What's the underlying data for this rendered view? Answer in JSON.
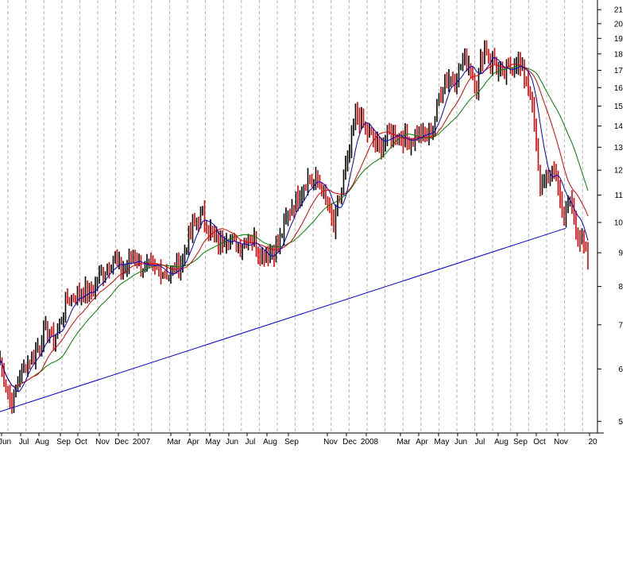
{
  "chart_data": {
    "type": "candlestick",
    "title": "",
    "xlabel": "",
    "ylabel": "",
    "y_scale": "log",
    "ylim": [
      4.8,
      21.6
    ],
    "y_ticks": [
      5,
      6,
      7,
      8,
      9,
      10,
      11,
      12,
      13,
      14,
      15,
      16,
      17,
      18,
      19,
      20,
      21
    ],
    "x_axis_labels": [
      "Jun",
      "Jul",
      "Aug",
      "Sep",
      "Oct",
      "Nov",
      "Dec",
      "2007",
      "Mar",
      "Apr",
      "May",
      "Jun",
      "Jul",
      "Aug",
      "Sep",
      "Nov",
      "Dec",
      "2008",
      "Mar",
      "Apr",
      "May",
      "Jun",
      "Jul",
      "Aug",
      "Sep",
      "Oct",
      "Nov",
      "20"
    ],
    "grid": "vertical dashed",
    "colors": {
      "bull_bar": "#000000",
      "bear_bar": "#e00000",
      "ma_short": "#0000cc",
      "ma_mid": "#e00000",
      "ma_long": "#008000",
      "trendline": "#0000cc",
      "grid": "#b4b4b4"
    },
    "price_path": [
      [
        0,
        6.2
      ],
      [
        4,
        5.9
      ],
      [
        8,
        5.6
      ],
      [
        12,
        5.4
      ],
      [
        16,
        5.35
      ],
      [
        20,
        5.6
      ],
      [
        24,
        5.9
      ],
      [
        30,
        6.0
      ],
      [
        36,
        6.2
      ],
      [
        42,
        6.3
      ],
      [
        48,
        6.5
      ],
      [
        56,
        6.8
      ],
      [
        62,
        6.9
      ],
      [
        66,
        6.6
      ],
      [
        72,
        6.8
      ],
      [
        78,
        7.2
      ],
      [
        84,
        7.6
      ],
      [
        92,
        7.7
      ],
      [
        100,
        7.8
      ],
      [
        108,
        7.9
      ],
      [
        116,
        7.8
      ],
      [
        122,
        8.2
      ],
      [
        130,
        8.4
      ],
      [
        136,
        8.6
      ],
      [
        144,
        8.8
      ],
      [
        150,
        8.6
      ],
      [
        156,
        8.5
      ],
      [
        164,
        8.8
      ],
      [
        170,
        8.9
      ],
      [
        176,
        8.6
      ],
      [
        184,
        8.5
      ],
      [
        192,
        8.5
      ],
      [
        200,
        8.5
      ],
      [
        208,
        8.4
      ],
      [
        214,
        8.3
      ],
      [
        222,
        8.6
      ],
      [
        230,
        8.8
      ],
      [
        236,
        9.4
      ],
      [
        242,
        9.8
      ],
      [
        248,
        10.1
      ],
      [
        254,
        10.3
      ],
      [
        260,
        10.0
      ],
      [
        266,
        9.6
      ],
      [
        272,
        9.4
      ],
      [
        278,
        9.3
      ],
      [
        284,
        9.6
      ],
      [
        290,
        9.4
      ],
      [
        296,
        9.3
      ],
      [
        302,
        9.2
      ],
      [
        308,
        9.4
      ],
      [
        316,
        9.5
      ],
      [
        322,
        9.3
      ],
      [
        328,
        8.9
      ],
      [
        334,
        9.0
      ],
      [
        340,
        9.0
      ],
      [
        346,
        9.1
      ],
      [
        352,
        9.4
      ],
      [
        358,
        9.9
      ],
      [
        364,
        10.4
      ],
      [
        370,
        10.7
      ],
      [
        376,
        11.0
      ],
      [
        382,
        11.4
      ],
      [
        388,
        11.7
      ],
      [
        394,
        11.4
      ],
      [
        400,
        11.6
      ],
      [
        406,
        11.2
      ],
      [
        412,
        10.6
      ],
      [
        416,
        10.2
      ],
      [
        420,
        9.8
      ],
      [
        424,
        10.6
      ],
      [
        430,
        11.2
      ],
      [
        436,
        12.2
      ],
      [
        442,
        13.2
      ],
      [
        448,
        14.6
      ],
      [
        454,
        14.2
      ],
      [
        460,
        13.8
      ],
      [
        466,
        13.6
      ],
      [
        472,
        13.2
      ],
      [
        478,
        13.0
      ],
      [
        484,
        13.4
      ],
      [
        490,
        13.6
      ],
      [
        496,
        13.7
      ],
      [
        502,
        13.5
      ],
      [
        508,
        13.4
      ],
      [
        514,
        13.3
      ],
      [
        520,
        13.5
      ],
      [
        526,
        13.6
      ],
      [
        532,
        13.6
      ],
      [
        538,
        13.5
      ],
      [
        546,
        14.0
      ],
      [
        552,
        15.4
      ],
      [
        558,
        16.2
      ],
      [
        564,
        16.6
      ],
      [
        570,
        16.4
      ],
      [
        576,
        16.8
      ],
      [
        580,
        17.2
      ],
      [
        586,
        17.8
      ],
      [
        590,
        17.4
      ],
      [
        596,
        16.6
      ],
      [
        600,
        16.0
      ],
      [
        604,
        17.2
      ],
      [
        610,
        18.4
      ],
      [
        614,
        18.2
      ],
      [
        618,
        17.4
      ],
      [
        622,
        17.8
      ],
      [
        626,
        16.9
      ],
      [
        632,
        16.6
      ],
      [
        638,
        17.0
      ],
      [
        644,
        17.2
      ],
      [
        650,
        17.6
      ],
      [
        656,
        17.0
      ],
      [
        662,
        16.6
      ],
      [
        668,
        15.6
      ],
      [
        672,
        14.0
      ],
      [
        676,
        12.4
      ],
      [
        680,
        11.2
      ],
      [
        686,
        12.0
      ],
      [
        690,
        11.5
      ],
      [
        696,
        12.2
      ],
      [
        702,
        11.4
      ],
      [
        706,
        11.0
      ],
      [
        710,
        9.8
      ],
      [
        714,
        10.6
      ],
      [
        718,
        10.9
      ],
      [
        722,
        10.2
      ],
      [
        726,
        9.8
      ],
      [
        730,
        9.4
      ],
      [
        734,
        9.2
      ],
      [
        738,
        8.9
      ],
      [
        742,
        8.5
      ]
    ]
  }
}
